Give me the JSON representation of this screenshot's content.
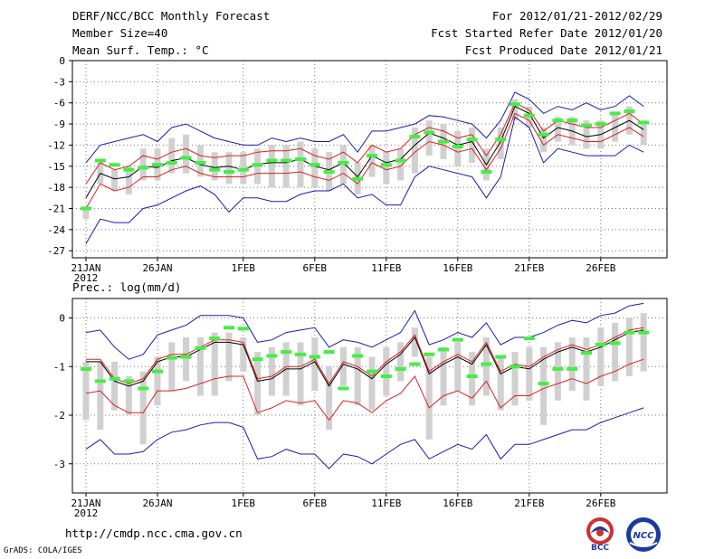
{
  "header": {
    "title": "DERF/NCC/BCC Monthly Forecast",
    "member_size": "Member Size=40",
    "variable": "Mean Surf. Temp.: °C",
    "period": "For 2012/01/21-2012/02/29",
    "started": "Fcst Started Refer Date 2012/01/20",
    "produced": "Fcst Produced Date 2012/01/21"
  },
  "footer": {
    "url": "http://cmdp.ncc.cma.gov.cn",
    "credit": "GrADS: COLA/IGES",
    "logo_left": "BCC",
    "logo_right": "NCC"
  },
  "colors": {
    "ensemble_mean": "#000000",
    "percentile_band": "#dd2020",
    "extremes": "#1a1ab4",
    "member_box": "#d0d0d0",
    "observed_marker": "#44ee44",
    "grid": "#777777"
  },
  "chart_data": [
    {
      "type": "line",
      "title": "Mean Surf. Temp.: °C",
      "ylim": [
        -28,
        0
      ],
      "yticks": [
        0,
        -3,
        -6,
        -9,
        -12,
        -15,
        -18,
        -21,
        -24,
        -27
      ],
      "xticklabels": [
        "21JAN",
        "26JAN",
        "1FEB",
        "6FEB",
        "11FEB",
        "16FEB",
        "21FEB",
        "26FEB"
      ],
      "xtick_days": [
        0,
        5,
        11,
        16,
        21,
        26,
        31,
        36
      ],
      "year_label": "2012",
      "x_days": [
        0,
        1,
        2,
        3,
        4,
        5,
        6,
        7,
        8,
        9,
        10,
        11,
        12,
        13,
        14,
        15,
        16,
        17,
        18,
        19,
        20,
        21,
        22,
        23,
        24,
        25,
        26,
        27,
        28,
        29,
        30,
        31,
        32,
        33,
        34,
        35,
        36,
        37,
        38,
        39
      ],
      "series": [
        {
          "name": "ensemble mean",
          "role": "mean",
          "values": [
            -19.5,
            -16,
            -16.8,
            -16.5,
            -15,
            -15.2,
            -14.2,
            -13.8,
            -14.8,
            -15.2,
            -15,
            -15.5,
            -14.7,
            -14.5,
            -14.5,
            -14,
            -15,
            -15.5,
            -14.5,
            -16.5,
            -13.5,
            -14.5,
            -14,
            -12,
            -10.3,
            -11,
            -12,
            -11.5,
            -14.8,
            -11.5,
            -6.5,
            -7.5,
            -11,
            -9.5,
            -10,
            -10.8,
            -10.5,
            -9.5,
            -8.5,
            -9.8
          ]
        },
        {
          "name": "upper red",
          "role": "percentile",
          "values": [
            -17.5,
            -14.5,
            -15.5,
            -15,
            -13.5,
            -14,
            -13,
            -12.5,
            -13.5,
            -13.8,
            -13.5,
            -13.5,
            -13,
            -12.8,
            -12.8,
            -12.5,
            -13.5,
            -14,
            -13,
            -14.5,
            -12,
            -13,
            -12.5,
            -10.5,
            -9.5,
            -10,
            -11,
            -10.5,
            -13.5,
            -10.5,
            -6,
            -7,
            -10,
            -8.5,
            -9,
            -9.5,
            -9.5,
            -8.5,
            -7.5,
            -9
          ]
        },
        {
          "name": "lower red",
          "role": "percentile",
          "values": [
            -21,
            -17.5,
            -18.5,
            -18,
            -16.5,
            -16.5,
            -15.5,
            -15,
            -16,
            -16.5,
            -16.5,
            -16.5,
            -16,
            -16,
            -16,
            -15.8,
            -16.5,
            -17,
            -16,
            -17.5,
            -14.5,
            -15.5,
            -15,
            -13,
            -11.5,
            -12,
            -13,
            -12.5,
            -15.5,
            -12.5,
            -7.5,
            -8.5,
            -12,
            -10.5,
            -11,
            -11.5,
            -11.5,
            -10.5,
            -9.5,
            -10.8
          ]
        },
        {
          "name": "max member",
          "role": "extreme",
          "values": [
            -14.5,
            -12,
            -11.5,
            -11,
            -10.5,
            -11.5,
            -9.5,
            -9,
            -10,
            -11,
            -11.5,
            -12,
            -12,
            -11,
            -11.5,
            -11,
            -11.5,
            -11.5,
            -10.5,
            -13,
            -10,
            -10,
            -9.5,
            -9,
            -7.8,
            -8,
            -8.5,
            -9,
            -11,
            -8.5,
            -4.5,
            -5.5,
            -7.5,
            -6.5,
            -7,
            -6,
            -7,
            -6.5,
            -5,
            -6.5
          ]
        },
        {
          "name": "min member",
          "role": "extreme",
          "values": [
            -26,
            -22.5,
            -23,
            -23,
            -21,
            -20.5,
            -19.5,
            -18.5,
            -17.8,
            -19,
            -21.5,
            -19.5,
            -19.5,
            -20,
            -20,
            -19,
            -18.5,
            -18.5,
            -17.5,
            -19.5,
            -19,
            -20.5,
            -20.5,
            -16.5,
            -15,
            -15.5,
            -16,
            -16.5,
            -19.5,
            -16.5,
            -8,
            -9.5,
            -14.5,
            -12.5,
            -13,
            -13.5,
            -13.5,
            -13.5,
            -12,
            -13
          ]
        },
        {
          "name": "observed",
          "role": "marker",
          "values": [
            -21,
            -14.2,
            -14.8,
            -15.5,
            -15.2,
            -14.8,
            -14.5,
            -13.8,
            -14.5,
            -15.5,
            -15.8,
            -15.5,
            -14.8,
            -14.2,
            -14.2,
            -14,
            -14.8,
            -15.8,
            -14.5,
            -16.8,
            -13.5,
            -14.8,
            -14.2,
            -10.8,
            -10.2,
            -11.5,
            -12.2,
            -11.2,
            -15.8,
            -11.2,
            -6.2,
            -7.8,
            -10.5,
            -8.5,
            -8.5,
            -9.2,
            -9,
            -7.5,
            -7.2,
            -8.8
          ]
        }
      ],
      "box_low": [
        -22.5,
        -17.5,
        -18.5,
        -19,
        -17,
        -17,
        -16,
        -16,
        -16.5,
        -17,
        -17.5,
        -17.5,
        -17.5,
        -18,
        -18,
        -18,
        -18,
        -18.5,
        -17.5,
        -19,
        -16.5,
        -17.5,
        -17,
        -16,
        -13.5,
        -14,
        -15,
        -14.5,
        -17,
        -14,
        -8.5,
        -9.5,
        -13,
        -11.5,
        -12,
        -12.5,
        -12.5,
        -11.5,
        -10.5,
        -12
      ],
      "box_high": [
        -21,
        -14.5,
        -15.5,
        -15,
        -12.5,
        -12.5,
        -11,
        -10.5,
        -12,
        -13,
        -13,
        -13,
        -12.5,
        -12,
        -12,
        -11.5,
        -12.5,
        -13,
        -12,
        -14.5,
        -12,
        -13,
        -12.5,
        -9.5,
        -8.5,
        -9,
        -10,
        -9.5,
        -12.5,
        -9.5,
        -5.5,
        -6.5,
        -9.5,
        -8,
        -8,
        -8.5,
        -8.5,
        -7.5,
        -6.5,
        -8.5
      ]
    },
    {
      "type": "line",
      "title": "Prec.: log(mm/d)",
      "ylim": [
        -3.6,
        0.4
      ],
      "yticks": [
        0,
        -1,
        -2,
        -3
      ],
      "xticklabels": [
        "21JAN",
        "26JAN",
        "1FEB",
        "6FEB",
        "11FEB",
        "16FEB",
        "21FEB",
        "26FEB"
      ],
      "xtick_days": [
        0,
        5,
        11,
        16,
        21,
        26,
        31,
        36
      ],
      "year_label": "2012",
      "x_days": [
        0,
        1,
        2,
        3,
        4,
        5,
        6,
        7,
        8,
        9,
        10,
        11,
        12,
        13,
        14,
        15,
        16,
        17,
        18,
        19,
        20,
        21,
        22,
        23,
        24,
        25,
        26,
        27,
        28,
        29,
        30,
        31,
        32,
        33,
        34,
        35,
        36,
        37,
        38,
        39
      ],
      "series": [
        {
          "name": "ensemble mean",
          "role": "mean",
          "values": [
            -0.9,
            -0.9,
            -1.3,
            -1.4,
            -1.3,
            -0.9,
            -0.8,
            -0.8,
            -0.65,
            -0.5,
            -0.5,
            -0.55,
            -1.3,
            -1.25,
            -1.05,
            -1.05,
            -0.9,
            -1.4,
            -0.95,
            -1.05,
            -1.25,
            -0.95,
            -0.75,
            -0.4,
            -1.15,
            -0.95,
            -0.8,
            -0.95,
            -0.55,
            -1.15,
            -1.0,
            -1.05,
            -0.85,
            -0.7,
            -0.6,
            -0.7,
            -0.6,
            -0.45,
            -0.3,
            -0.25
          ]
        },
        {
          "name": "upper red",
          "role": "percentile",
          "values": [
            -0.85,
            -0.85,
            -1.25,
            -1.35,
            -1.25,
            -0.85,
            -0.75,
            -0.75,
            -0.6,
            -0.45,
            -0.45,
            -0.5,
            -1.25,
            -1.2,
            -1.0,
            -1.0,
            -0.85,
            -1.35,
            -0.9,
            -1.0,
            -1.2,
            -0.9,
            -0.7,
            -0.35,
            -1.1,
            -0.9,
            -0.75,
            -0.9,
            -0.5,
            -1.1,
            -0.95,
            -1.0,
            -0.8,
            -0.65,
            -0.55,
            -0.65,
            -0.55,
            -0.4,
            -0.25,
            -0.2
          ]
        },
        {
          "name": "lower red",
          "role": "percentile",
          "values": [
            -1.55,
            -1.5,
            -1.8,
            -1.95,
            -1.95,
            -1.5,
            -1.5,
            -1.45,
            -1.35,
            -1.25,
            -1.2,
            -1.2,
            -1.95,
            -1.85,
            -1.7,
            -1.75,
            -1.7,
            -2.1,
            -1.7,
            -1.75,
            -1.95,
            -1.7,
            -1.55,
            -1.2,
            -1.85,
            -1.6,
            -1.5,
            -1.65,
            -1.3,
            -1.85,
            -1.6,
            -1.6,
            -1.45,
            -1.35,
            -1.25,
            -1.35,
            -1.2,
            -1.1,
            -0.95,
            -0.85
          ]
        },
        {
          "name": "max member",
          "role": "extreme",
          "values": [
            -0.3,
            -0.25,
            -0.6,
            -0.85,
            -0.75,
            -0.35,
            -0.25,
            -0.15,
            0.05,
            0.05,
            0.05,
            0.0,
            -0.5,
            -0.45,
            -0.3,
            -0.25,
            -0.2,
            -0.6,
            -0.45,
            -0.5,
            -0.6,
            -0.45,
            -0.3,
            0.15,
            -0.55,
            -0.45,
            -0.3,
            -0.4,
            -0.1,
            -0.55,
            -0.4,
            -0.4,
            -0.3,
            -0.15,
            -0.05,
            -0.1,
            0.05,
            0.1,
            0.25,
            0.3
          ]
        },
        {
          "name": "min member",
          "role": "extreme",
          "values": [
            -2.7,
            -2.5,
            -2.8,
            -2.8,
            -2.75,
            -2.5,
            -2.35,
            -2.3,
            -2.2,
            -2.15,
            -2.15,
            -2.25,
            -2.9,
            -2.85,
            -2.7,
            -2.8,
            -2.8,
            -3.1,
            -2.8,
            -2.85,
            -3.0,
            -2.8,
            -2.6,
            -2.5,
            -2.9,
            -2.75,
            -2.6,
            -2.7,
            -2.4,
            -2.9,
            -2.6,
            -2.6,
            -2.5,
            -2.4,
            -2.3,
            -2.3,
            -2.15,
            -2.05,
            -1.95,
            -1.85
          ]
        },
        {
          "name": "observed",
          "role": "marker",
          "values": [
            -1.05,
            -1.3,
            -1.25,
            -1.3,
            -1.45,
            -1.1,
            -0.82,
            -0.8,
            -0.62,
            -0.42,
            -0.2,
            -0.22,
            -0.85,
            -0.78,
            -0.7,
            -0.75,
            -0.8,
            -0.7,
            -1.45,
            -0.78,
            -1.1,
            -1.2,
            -1.05,
            -0.95,
            -0.75,
            -0.65,
            -0.45,
            -1.2,
            -0.95,
            -0.8,
            -1.0,
            -0.42,
            -1.35,
            -1.05,
            -1.05,
            -0.72,
            -0.55,
            -0.52,
            -0.3,
            -0.3
          ]
        }
      ],
      "box_low": [
        -2.1,
        -2.3,
        -1.9,
        -2.0,
        -2.6,
        -1.8,
        -1.5,
        -1.3,
        -1.6,
        -1.6,
        -1.3,
        -1.1,
        -2.0,
        -1.6,
        -1.6,
        -1.8,
        -1.5,
        -2.3,
        -1.4,
        -1.8,
        -1.9,
        -1.6,
        -1.3,
        -0.8,
        -2.5,
        -1.8,
        -1.5,
        -1.8,
        -1.6,
        -1.9,
        -1.8,
        -1.7,
        -2.2,
        -1.7,
        -1.5,
        -1.7,
        -1.4,
        -1.3,
        -1.2,
        -1.1
      ],
      "box_high": [
        -0.9,
        -0.9,
        -0.9,
        -1.2,
        -1.1,
        -0.8,
        -0.5,
        -0.4,
        -0.4,
        -0.3,
        -0.3,
        -0.4,
        -0.7,
        -0.6,
        -0.5,
        -0.5,
        -0.4,
        -1.0,
        -0.6,
        -0.6,
        -0.8,
        -0.6,
        -0.5,
        -0.2,
        -0.8,
        -0.6,
        -0.5,
        -0.7,
        -0.4,
        -0.8,
        -0.7,
        -0.6,
        -0.6,
        -0.5,
        -0.4,
        -0.4,
        -0.2,
        -0.1,
        0.0,
        0.1
      ]
    }
  ]
}
